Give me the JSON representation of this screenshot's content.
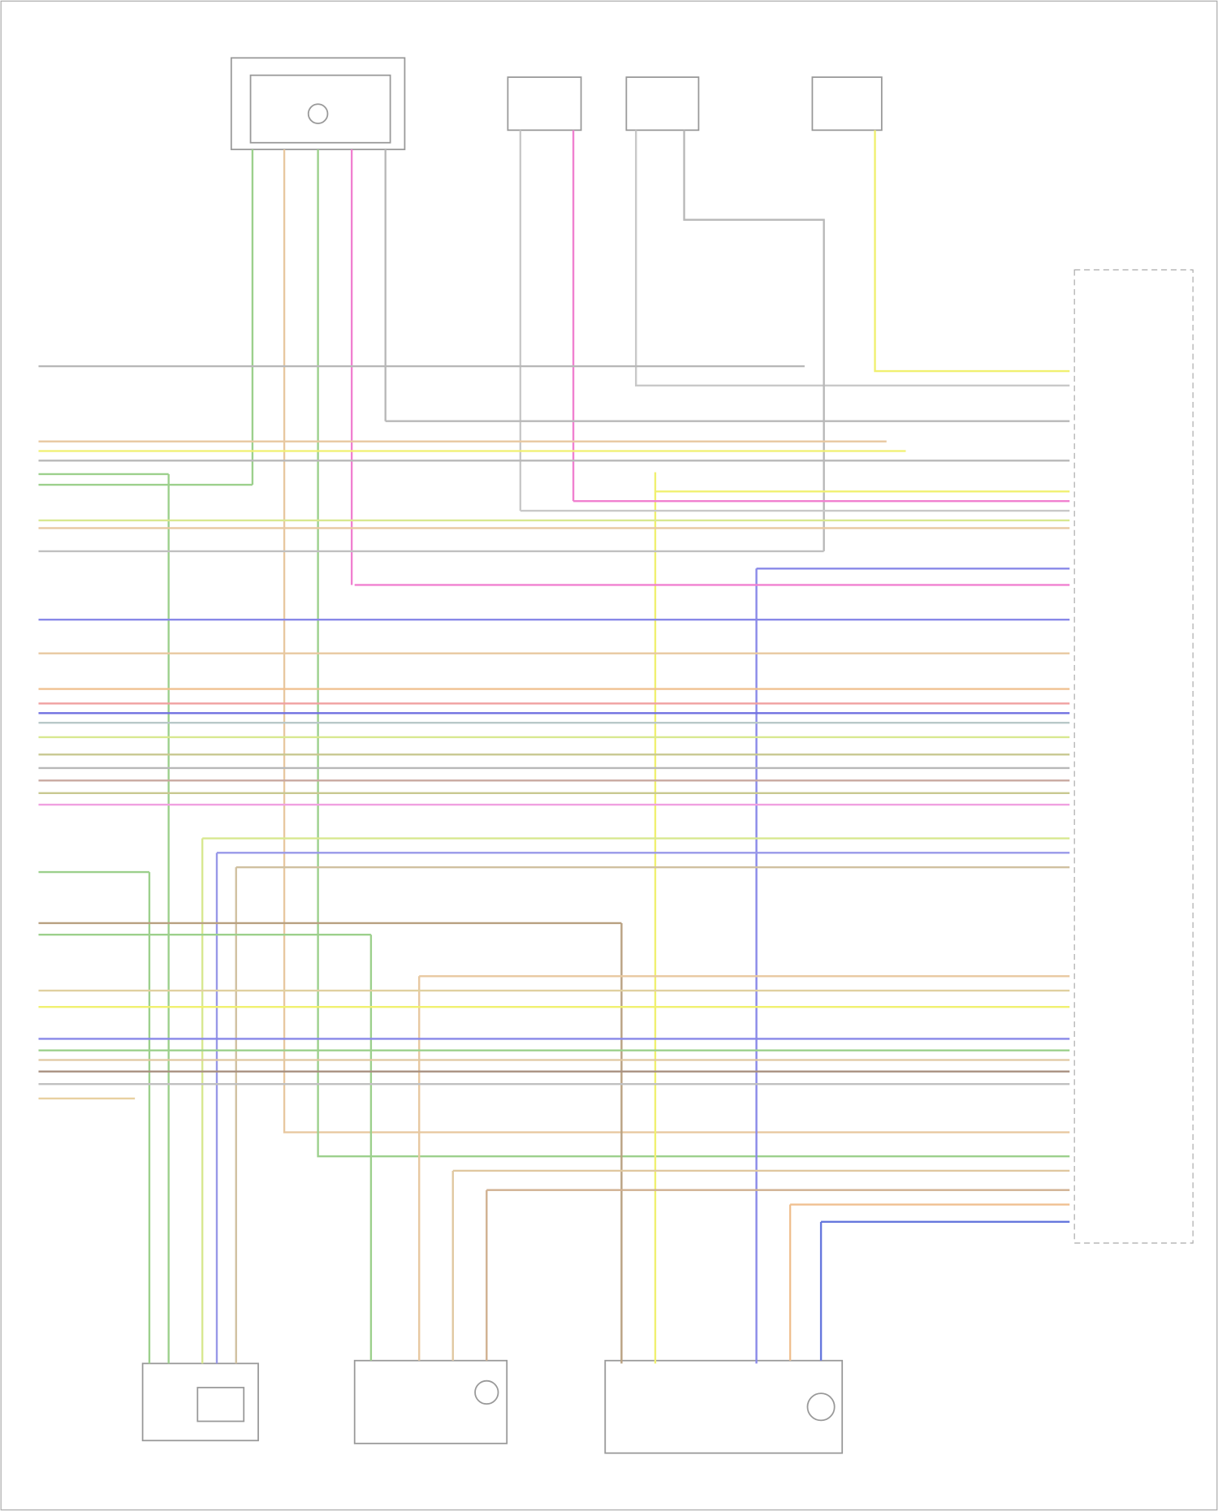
{
  "wires": [
    {
      "color": "#b8b8b8"
    },
    {
      "color": "#b8b8b8"
    },
    {
      "color": "#e8c8a0"
    },
    {
      "color": "#f0f070"
    },
    {
      "color": "#b8b8b8"
    },
    {
      "color": "#9cd08c"
    },
    {
      "color": "#9cd08c"
    },
    {
      "color": "#f0f070"
    },
    {
      "color": "#f080d0"
    },
    {
      "color": "#c8c8c8"
    },
    {
      "color": "#d8e890"
    },
    {
      "color": "#e8c8a0"
    },
    {
      "color": "#c0c0c0"
    },
    {
      "color": "#8888e8"
    },
    {
      "color": "#f080d0"
    },
    {
      "color": "#8888e8"
    },
    {
      "color": "#e8c8a0"
    },
    {
      "color": "#f0c090"
    },
    {
      "color": "#f0a0a0"
    },
    {
      "color": "#7070e0"
    },
    {
      "color": "#b8c8c8"
    },
    {
      "color": "#d8e890"
    },
    {
      "color": "#c8c890"
    },
    {
      "color": "#b8b8b8"
    },
    {
      "color": "#c8a8a0"
    },
    {
      "color": "#c8c890"
    },
    {
      "color": "#f0a0e0"
    },
    {
      "color": "#d8e890"
    },
    {
      "color": "#9898e8"
    },
    {
      "color": "#d0c0a0"
    },
    {
      "color": "#9cd08c"
    },
    {
      "color": "#b8a080"
    },
    {
      "color": "#9cd08c"
    },
    {
      "color": "#e8c8a0"
    },
    {
      "color": "#e0d0a0"
    },
    {
      "color": "#f0f070"
    },
    {
      "color": "#8888e8"
    },
    {
      "color": "#9cd08c"
    },
    {
      "color": "#e0c8a0"
    },
    {
      "color": "#a89080"
    },
    {
      "color": "#c0c0c0"
    },
    {
      "color": "#e8d0a0"
    }
  ]
}
